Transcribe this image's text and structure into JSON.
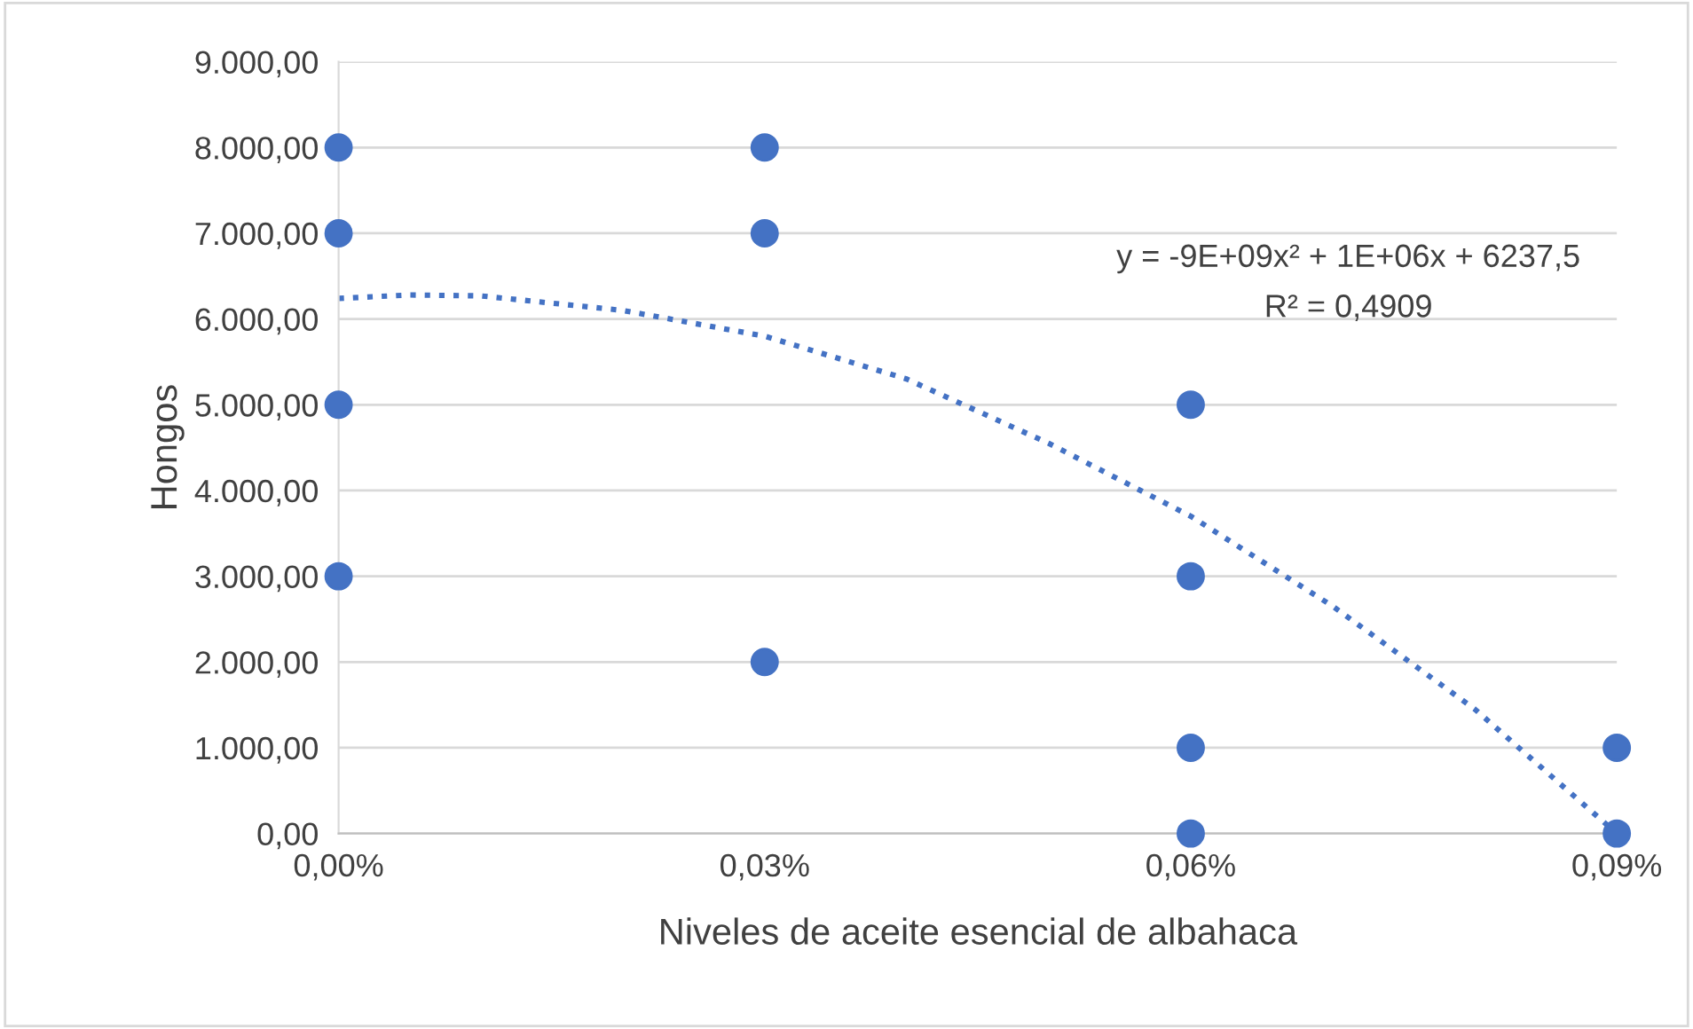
{
  "chart_data": {
    "type": "scatter",
    "xlabel": "Niveles de aceite esencial de albahaca",
    "ylabel": "Hongos",
    "series": [
      {
        "color": "#4472c4",
        "marker": "circle",
        "x": [
          0,
          0,
          0,
          0,
          0.03,
          0.03,
          0.03,
          0.06,
          0.06,
          0.06,
          0.06,
          0.09,
          0.09
        ],
        "values": [
          8000,
          7000,
          5000,
          3000,
          8000,
          7000,
          2000,
          5000,
          3000,
          1000,
          0,
          1000,
          0
        ]
      },
      {
        "type": "line",
        "color": "#4472c4",
        "marker": "none",
        "line_style": "dotted",
        "x": [
          0,
          0.005,
          0.01,
          0.02,
          0.03,
          0.04,
          0.05,
          0.06,
          0.07,
          0.08,
          0.09
        ],
        "values": [
          6240,
          6280,
          6270,
          6100,
          5800,
          5300,
          4550,
          3700,
          2650,
          1450,
          0
        ]
      }
    ],
    "xlim": [
      0,
      0.09
    ],
    "xticks": [
      {
        "value": 0,
        "label": "0,00%"
      },
      {
        "value": 0.03,
        "label": "0,03%"
      },
      {
        "value": 0.06,
        "label": "0,06%"
      },
      {
        "value": 0.09,
        "label": "0,09%"
      }
    ],
    "ylim": [
      0,
      9000
    ],
    "yticks": [
      {
        "value": 0,
        "label": "0,00"
      },
      {
        "value": 1000,
        "label": "1.000,00"
      },
      {
        "value": 2000,
        "label": "2.000,00"
      },
      {
        "value": 3000,
        "label": "3.000,00"
      },
      {
        "value": 4000,
        "label": "4.000,00"
      },
      {
        "value": 5000,
        "label": "5.000,00"
      },
      {
        "value": 6000,
        "label": "6.000,00"
      },
      {
        "value": 7000,
        "label": "7.000,00"
      },
      {
        "value": 8000,
        "label": "8.000,00"
      },
      {
        "value": 9000,
        "label": "9.000,00"
      }
    ],
    "grid": "y",
    "legend": false,
    "annotations": [
      "y = -9E+09x² + 1E+06x + 6237,5",
      "R² = 0,4909"
    ]
  }
}
